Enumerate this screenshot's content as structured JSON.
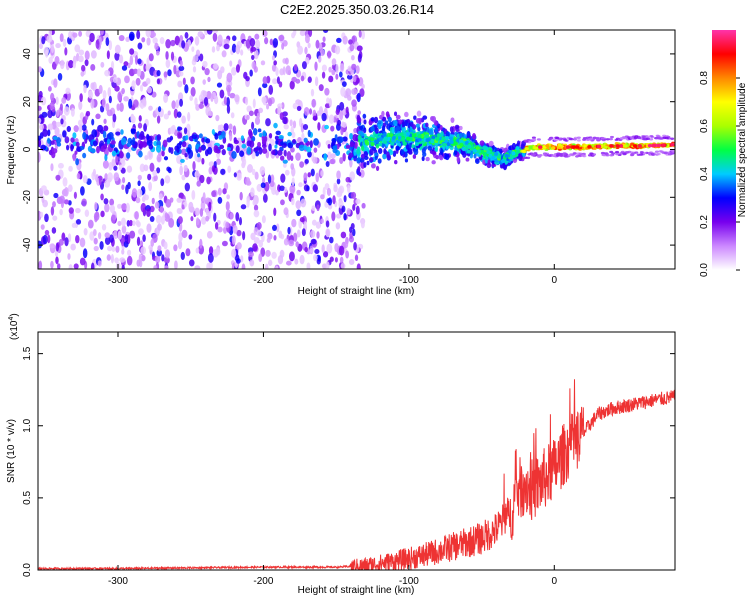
{
  "title": "C2E2.2025.350.03.26.R14",
  "chart_data": [
    {
      "type": "heatmap",
      "title": "C2E2.2025.350.03.26.R14",
      "xlabel": "Height of straight line (km)",
      "ylabel": "Frequency (Hz)",
      "xlim": [
        -355,
        83
      ],
      "ylim": [
        -50,
        50
      ],
      "xticks": [
        -300,
        -200,
        -100,
        0
      ],
      "yticks": [
        -40,
        -20,
        0,
        20,
        40
      ],
      "colorbar": {
        "label": "Normalized spectral amplitude",
        "range": [
          0,
          1
        ],
        "ticks": [
          0.0,
          0.2,
          0.4,
          0.6,
          0.8
        ],
        "colors": [
          "#ffffff",
          "#cc88ff",
          "#7700ee",
          "#0000ff",
          "#00ccff",
          "#00ff44",
          "#aaff00",
          "#ffff00",
          "#ff8800",
          "#ff0000",
          "#ff33aa"
        ]
      },
      "signal_ridge": {
        "x": [
          -135,
          -120,
          -100,
          -80,
          -60,
          -45,
          -35,
          -25,
          -15,
          0,
          20,
          40,
          60,
          83
        ],
        "y": [
          3,
          4,
          5,
          4,
          2,
          -2,
          -4,
          -1,
          1,
          1,
          1,
          1.5,
          1.5,
          2
        ]
      },
      "noise_region_x": [
        -355,
        -135
      ]
    },
    {
      "type": "line",
      "xlabel": "Height of straight line (km)",
      "ylabel": "SNR (10 * v/v)",
      "y_multiplier": "(x10",
      "y_multiplier_exp": "4",
      "xlim": [
        -355,
        83
      ],
      "ylim": [
        0,
        1.65
      ],
      "xticks": [
        -300,
        -200,
        -100,
        0
      ],
      "yticks": [
        "0.0",
        "0.5",
        "1.0",
        "1.5"
      ],
      "series": [
        {
          "color": "#ee3333",
          "x": [
            -355,
            -300,
            -250,
            -200,
            -150,
            -130,
            -110,
            -90,
            -70,
            -50,
            -40,
            -30,
            -25,
            -20,
            -15,
            -10,
            -5,
            0,
            5,
            10,
            15,
            20,
            30,
            40,
            50,
            60,
            70,
            83
          ],
          "y": [
            0.01,
            0.01,
            0.015,
            0.02,
            0.02,
            0.03,
            0.06,
            0.1,
            0.16,
            0.22,
            0.28,
            0.4,
            0.55,
            0.6,
            0.55,
            0.6,
            0.65,
            0.7,
            0.78,
            0.85,
            0.9,
            0.95,
            1.08,
            1.12,
            1.14,
            1.16,
            1.18,
            1.2
          ]
        }
      ]
    }
  ]
}
